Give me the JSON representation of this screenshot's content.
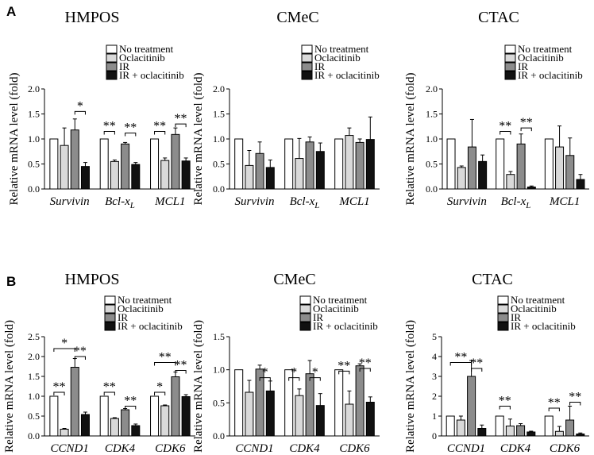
{
  "panel_labels": [
    "A",
    "B"
  ],
  "legend_labels": [
    "No treatment",
    "Oclacitinib",
    "IR",
    "IR + oclacitinib"
  ],
  "colors": {
    "fills": [
      "#ffffff",
      "#d9d9d9",
      "#8c8c8c",
      "#111111"
    ],
    "stroke": "#000000"
  },
  "chart_data": [
    {
      "type": "bar",
      "panel": "A",
      "title": "HMPOS",
      "ylabel": "Relative mRNA level (fold)",
      "ylim": [
        0,
        2.0
      ],
      "yticks": [
        0,
        0.5,
        1.0,
        1.5,
        2.0
      ],
      "yticklabels": [
        "0.0",
        "0.5",
        "1.0",
        "1.5",
        "2.0"
      ],
      "categories": [
        "Survivin",
        "Bcl-x",
        "MCL1"
      ],
      "category_subscripts": [
        "",
        "L",
        ""
      ],
      "series": [
        {
          "name": "No treatment",
          "values": [
            1.0,
            1.0,
            1.0
          ],
          "errors": [
            0,
            0,
            0
          ]
        },
        {
          "name": "Oclacitinib",
          "values": [
            0.87,
            0.55,
            0.57
          ],
          "errors": [
            0.35,
            0.03,
            0.05
          ]
        },
        {
          "name": "IR",
          "values": [
            1.18,
            0.9,
            1.09
          ],
          "errors": [
            0.22,
            0.03,
            0.13
          ]
        },
        {
          "name": "IR + oclacitinib",
          "values": [
            0.45,
            0.49,
            0.56
          ],
          "errors": [
            0.08,
            0.04,
            0.06
          ]
        }
      ],
      "significance": [
        {
          "category": 0,
          "from": 2,
          "to": 3,
          "label": "*",
          "y": 1.55
        },
        {
          "category": 1,
          "from": 0,
          "to": 1,
          "label": "**",
          "y": 1.15
        },
        {
          "category": 1,
          "from": 2,
          "to": 3,
          "label": "**",
          "y": 1.12
        },
        {
          "category": 2,
          "from": 0,
          "to": 1,
          "label": "**",
          "y": 1.15
        },
        {
          "category": 2,
          "from": 2,
          "to": 3,
          "label": "**",
          "y": 1.3
        }
      ]
    },
    {
      "type": "bar",
      "panel": "A",
      "title": "CMeC",
      "ylabel": "Relative mRNA level (fold)",
      "ylim": [
        0,
        2.0
      ],
      "yticks": [
        0,
        0.5,
        1.0,
        1.5,
        2.0
      ],
      "yticklabels": [
        "0.0",
        "0.5",
        "1.0",
        "1.5",
        "2.0"
      ],
      "categories": [
        "Survivin",
        "Bcl-x",
        "MCL1"
      ],
      "category_subscripts": [
        "",
        "L",
        ""
      ],
      "series": [
        {
          "name": "No treatment",
          "values": [
            1.0,
            1.0,
            1.0
          ],
          "errors": [
            0,
            0,
            0
          ]
        },
        {
          "name": "Oclacitinib",
          "values": [
            0.47,
            0.61,
            1.07
          ],
          "errors": [
            0.3,
            0.4,
            0.15
          ]
        },
        {
          "name": "IR",
          "values": [
            0.71,
            0.94,
            0.93
          ],
          "errors": [
            0.23,
            0.1,
            0.07
          ]
        },
        {
          "name": "IR + oclacitinib",
          "values": [
            0.43,
            0.75,
            0.99
          ],
          "errors": [
            0.15,
            0.17,
            0.45
          ]
        }
      ],
      "significance": []
    },
    {
      "type": "bar",
      "panel": "A",
      "title": "CTAC",
      "ylabel": "Relative mRNA level (fold)",
      "ylim": [
        0,
        2.0
      ],
      "yticks": [
        0,
        0.5,
        1.0,
        1.5,
        2.0
      ],
      "yticklabels": [
        "0.0",
        "0.5",
        "1.0",
        "1.5",
        "2.0"
      ],
      "categories": [
        "Survivin",
        "Bcl-x",
        "MCL1"
      ],
      "category_subscripts": [
        "",
        "L",
        ""
      ],
      "series": [
        {
          "name": "No treatment",
          "values": [
            1.0,
            1.0,
            1.0
          ],
          "errors": [
            0,
            0,
            0
          ]
        },
        {
          "name": "Oclacitinib",
          "values": [
            0.43,
            0.29,
            0.84
          ],
          "errors": [
            0.03,
            0.06,
            0.42
          ]
        },
        {
          "name": "IR",
          "values": [
            0.84,
            0.9,
            0.67
          ],
          "errors": [
            0.55,
            0.2,
            0.35
          ]
        },
        {
          "name": "IR + oclacitinib",
          "values": [
            0.55,
            0.04,
            0.19
          ],
          "errors": [
            0.13,
            0.02,
            0.1
          ]
        }
      ],
      "significance": [
        {
          "category": 1,
          "from": 0,
          "to": 1,
          "label": "**",
          "y": 1.15
        },
        {
          "category": 1,
          "from": 2,
          "to": 3,
          "label": "**",
          "y": 1.22
        }
      ]
    },
    {
      "type": "bar",
      "panel": "B",
      "title": "HMPOS",
      "ylabel": "Relative mRNA level (fold)",
      "ylim": [
        0,
        2.5
      ],
      "yticks": [
        0,
        0.5,
        1.0,
        1.5,
        2.0,
        2.5
      ],
      "yticklabels": [
        "0.0",
        "0.5",
        "1.0",
        "1.5",
        "2.0",
        "2.5"
      ],
      "categories": [
        "CCND1",
        "CDK4",
        "CDK6"
      ],
      "category_subscripts": [
        "",
        "",
        ""
      ],
      "series": [
        {
          "name": "No treatment",
          "values": [
            1.0,
            1.0,
            1.0
          ],
          "errors": [
            0,
            0,
            0
          ]
        },
        {
          "name": "Oclacitinib",
          "values": [
            0.17,
            0.44,
            0.76
          ],
          "errors": [
            0.02,
            0.02,
            0.02
          ]
        },
        {
          "name": "IR",
          "values": [
            1.73,
            0.66,
            1.49
          ],
          "errors": [
            0.22,
            0.03,
            0.12
          ]
        },
        {
          "name": "IR + oclacitinib",
          "values": [
            0.54,
            0.26,
            0.99
          ],
          "errors": [
            0.06,
            0.04,
            0.05
          ]
        }
      ],
      "significance": [
        {
          "category": 0,
          "from": 0,
          "to": 1,
          "label": "**",
          "y": 1.1
        },
        {
          "category": 0,
          "from": 0,
          "to": 2,
          "label": "*",
          "y": 2.2
        },
        {
          "category": 0,
          "from": 2,
          "to": 3,
          "label": "**",
          "y": 2.0
        },
        {
          "category": 1,
          "from": 0,
          "to": 1,
          "label": "**",
          "y": 1.1
        },
        {
          "category": 1,
          "from": 2,
          "to": 3,
          "label": "**",
          "y": 0.75
        },
        {
          "category": 2,
          "from": 0,
          "to": 1,
          "label": "*",
          "y": 1.1
        },
        {
          "category": 2,
          "from": 0,
          "to": 2,
          "label": "**",
          "y": 1.85
        },
        {
          "category": 2,
          "from": 2,
          "to": 3,
          "label": "**",
          "y": 1.65
        }
      ]
    },
    {
      "type": "bar",
      "panel": "B",
      "title": "CMeC",
      "ylabel": "Relative mRNA level (fold)",
      "ylim": [
        0,
        1.5
      ],
      "yticks": [
        0,
        0.5,
        1.0,
        1.5
      ],
      "yticklabels": [
        "0.0",
        "0.5",
        "1.0",
        "1.5"
      ],
      "categories": [
        "CCND1",
        "CDK4",
        "CDK6"
      ],
      "category_subscripts": [
        "",
        "",
        ""
      ],
      "series": [
        {
          "name": "No treatment",
          "values": [
            1.0,
            1.0,
            1.0
          ],
          "errors": [
            0,
            0,
            0
          ]
        },
        {
          "name": "Oclacitinib",
          "values": [
            0.66,
            0.61,
            0.48
          ],
          "errors": [
            0.18,
            0.1,
            0.2
          ]
        },
        {
          "name": "IR",
          "values": [
            1.01,
            0.94,
            1.06
          ],
          "errors": [
            0.06,
            0.2,
            0.03
          ]
        },
        {
          "name": "IR + oclacitinib",
          "values": [
            0.68,
            0.46,
            0.51
          ],
          "errors": [
            0.15,
            0.18,
            0.08
          ]
        }
      ],
      "significance": [
        {
          "category": 0,
          "from": 2,
          "to": 3,
          "label": "*",
          "y": 0.88
        },
        {
          "category": 1,
          "from": 0,
          "to": 1,
          "label": "*",
          "y": 0.88
        },
        {
          "category": 1,
          "from": 2,
          "to": 3,
          "label": "*",
          "y": 0.88
        },
        {
          "category": 2,
          "from": 0,
          "to": 1,
          "label": "**",
          "y": 0.98
        },
        {
          "category": 2,
          "from": 2,
          "to": 3,
          "label": "**",
          "y": 1.02
        }
      ]
    },
    {
      "type": "bar",
      "panel": "B",
      "title": "CTAC",
      "ylabel": "Relative mRNA level (fold)",
      "ylim": [
        0,
        5
      ],
      "yticks": [
        0,
        1,
        2,
        3,
        4,
        5
      ],
      "yticklabels": [
        "0",
        "1",
        "2",
        "3",
        "4",
        "5"
      ],
      "categories": [
        "CCND1",
        "CDK4",
        "CDK6"
      ],
      "category_subscripts": [
        "",
        "",
        ""
      ],
      "series": [
        {
          "name": "No treatment",
          "values": [
            1.0,
            1.0,
            1.0
          ],
          "errors": [
            0,
            0,
            0
          ]
        },
        {
          "name": "Oclacitinib",
          "values": [
            0.8,
            0.5,
            0.23
          ],
          "errors": [
            0.2,
            0.35,
            0.25
          ]
        },
        {
          "name": "IR",
          "values": [
            3.0,
            0.52,
            0.8
          ],
          "errors": [
            0.8,
            0.1,
            0.7
          ]
        },
        {
          "name": "IR + oclacitinib",
          "values": [
            0.38,
            0.2,
            0.1
          ],
          "errors": [
            0.17,
            0.04,
            0.05
          ]
        }
      ],
      "significance": [
        {
          "category": 0,
          "from": 0,
          "to": 2,
          "label": "**",
          "y": 3.7
        },
        {
          "category": 0,
          "from": 2,
          "to": 3,
          "label": "**",
          "y": 3.4
        },
        {
          "category": 1,
          "from": 0,
          "to": 1,
          "label": "**",
          "y": 1.5
        },
        {
          "category": 2,
          "from": 0,
          "to": 1,
          "label": "**",
          "y": 1.4
        },
        {
          "category": 2,
          "from": 2,
          "to": 3,
          "label": "**",
          "y": 1.7
        }
      ]
    }
  ]
}
